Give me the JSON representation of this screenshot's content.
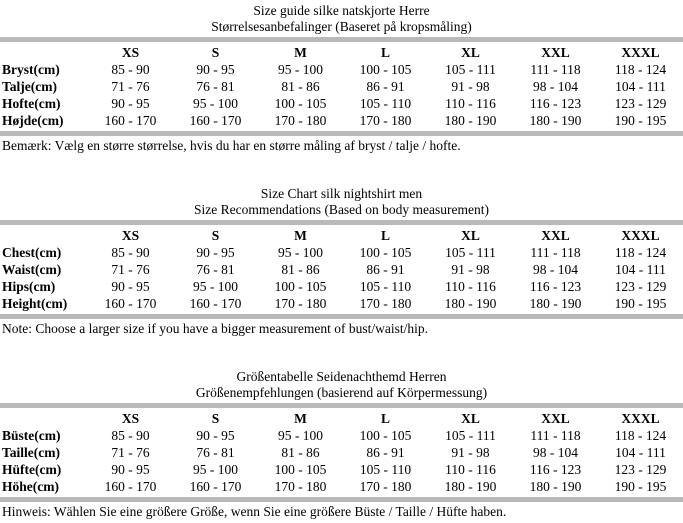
{
  "page": {
    "background_color": "#ffffff",
    "text_color": "#000000",
    "divider_color": "#b9b9b9"
  },
  "sections": [
    {
      "id": "danish",
      "title": "Size guide silke natskjorte Herre",
      "subtitle": "Størrelsesanbefalinger (Baseret på kropsmåling)",
      "columns": [
        "XS",
        "S",
        "M",
        "L",
        "XL",
        "XXL",
        "XXXL"
      ],
      "rows": [
        {
          "label": "Bryst(cm)",
          "values": [
            "85 - 90",
            "90 - 95",
            "95 - 100",
            "100 - 105",
            "105 - 111",
            "111 - 118",
            "118 - 124"
          ]
        },
        {
          "label": "Talje(cm)",
          "values": [
            "71 - 76",
            "76 - 81",
            "81 - 86",
            "86 - 91",
            "91 - 98",
            "98 - 104",
            "104 - 111"
          ]
        },
        {
          "label": "Hofte(cm)",
          "values": [
            "90 - 95",
            "95 - 100",
            "100 - 105",
            "105 - 110",
            "110 - 116",
            "116 - 123",
            "123 - 129"
          ]
        },
        {
          "label": "Højde(cm)",
          "values": [
            "160 - 170",
            "160 - 170",
            "170 - 180",
            "170 - 180",
            "180 - 190",
            "180 - 190",
            "190 - 195"
          ]
        }
      ],
      "note": "Bemærk: Vælg en større størrelse, hvis du har en større måling af bryst / talje / hofte."
    },
    {
      "id": "english",
      "title": "Size Chart silk nightshirt men",
      "subtitle": "Size Recommendations (Based on body measurement)",
      "columns": [
        "XS",
        "S",
        "M",
        "L",
        "XL",
        "XXL",
        "XXXL"
      ],
      "rows": [
        {
          "label": "Chest(cm)",
          "values": [
            "85 - 90",
            "90 - 95",
            "95 - 100",
            "100 - 105",
            "105 - 111",
            "111 - 118",
            "118 - 124"
          ]
        },
        {
          "label": "Waist(cm)",
          "values": [
            "71 - 76",
            "76 - 81",
            "81 - 86",
            "86 - 91",
            "91 - 98",
            "98 - 104",
            "104 - 111"
          ]
        },
        {
          "label": "Hips(cm)",
          "values": [
            "90 - 95",
            "95 - 100",
            "100 - 105",
            "105 - 110",
            "110 - 116",
            "116 - 123",
            "123 - 129"
          ]
        },
        {
          "label": "Height(cm)",
          "values": [
            "160 - 170",
            "160 - 170",
            "170 - 180",
            "170 - 180",
            "180 - 190",
            "180 - 190",
            "190 - 195"
          ]
        }
      ],
      "note": "Note: Choose a larger size if you have a bigger measurement of bust/waist/hip."
    },
    {
      "id": "german",
      "title": "Größentabelle Seidenachthemd Herren",
      "subtitle": "Größenempfehlungen (basierend auf Körpermessung)",
      "columns": [
        "XS",
        "S",
        "M",
        "L",
        "XL",
        "XXL",
        "XXXL"
      ],
      "rows": [
        {
          "label": "Büste(cm)",
          "values": [
            "85 - 90",
            "90 - 95",
            "95 - 100",
            "100 - 105",
            "105 - 111",
            "111 - 118",
            "118 - 124"
          ]
        },
        {
          "label": "Taille(cm)",
          "values": [
            "71 - 76",
            "76 - 81",
            "81 - 86",
            "86 - 91",
            "91 - 98",
            "98 - 104",
            "104 - 111"
          ]
        },
        {
          "label": "Hüfte(cm)",
          "values": [
            "90 - 95",
            "95 - 100",
            "100 - 105",
            "105 - 110",
            "110 - 116",
            "116 - 123",
            "123 - 129"
          ]
        },
        {
          "label": "Höhe(cm)",
          "values": [
            "160 - 170",
            "160 - 170",
            "170 - 180",
            "170 - 180",
            "180 - 190",
            "180 - 190",
            "190 - 195"
          ]
        }
      ],
      "note": "Hinweis: Wählen Sie eine größere Größe, wenn Sie eine größere Büste / Taille / Hüfte haben."
    }
  ]
}
